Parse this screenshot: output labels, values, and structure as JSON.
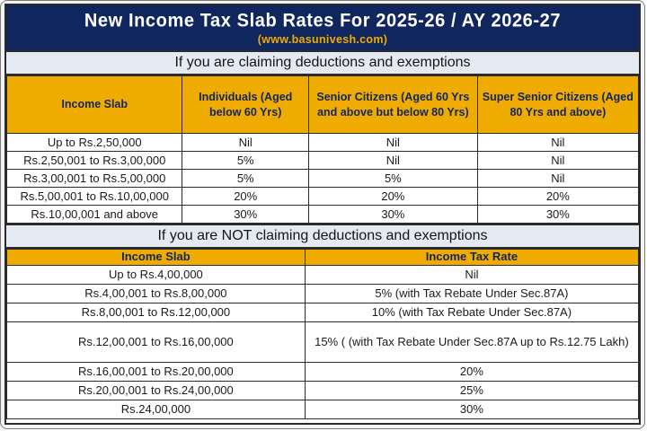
{
  "header": {
    "title": "New Income Tax Slab Rates For 2025-26 / AY 2026-27",
    "subtitle": "(www.basunivesh.com)"
  },
  "colors": {
    "navy": "#10265e",
    "gold": "#f0ab00",
    "band": "#e4e9f2",
    "line": "#2b2b2b",
    "text": "#1a1a1a"
  },
  "section_with_deductions": {
    "band_label": "If you are claiming deductions and exemptions",
    "columns": [
      "Income Slab",
      "Individuals (Aged below 60 Yrs)",
      "Senior Citizens (Aged 60 Yrs and above but below 80 Yrs)",
      "Super Senior Citizens (Aged 80 Yrs and above)"
    ],
    "rows": [
      [
        "Up to Rs.2,50,000",
        "Nil",
        "Nil",
        "Nil"
      ],
      [
        "Rs.2,50,001 to Rs.3,00,000",
        "5%",
        "Nil",
        "Nil"
      ],
      [
        "Rs.3,00,001 to Rs.5,00,000",
        "5%",
        "5%",
        "Nil"
      ],
      [
        "Rs.5,00,001 to Rs.10,00,000",
        "20%",
        "20%",
        "20%"
      ],
      [
        "Rs.10,00,001 and above",
        "30%",
        "30%",
        "30%"
      ]
    ]
  },
  "section_without_deductions": {
    "band_label": "If you are NOT claiming deductions and exemptions",
    "columns": [
      "Income Slab",
      "Income Tax Rate"
    ],
    "rows": [
      [
        "Up to Rs.4,00,000",
        "Nil"
      ],
      [
        "Rs.4,00,001 to Rs.8,00,000",
        "5% (with Tax Rebate Under Sec.87A)"
      ],
      [
        "Rs.8,00,001 to Rs.12,00,000",
        "10% (with Tax Rebate Under Sec.87A)"
      ],
      [
        "Rs.12,00,001 to Rs.16,00,000",
        "15% ( (with Tax Rebate Under Sec.87A up to Rs.12.75 Lakh)"
      ],
      [
        "Rs.16,00,001 to Rs.20,00,000",
        "20%"
      ],
      [
        "Rs.20,00,001 to Rs.24,00,000",
        "25%"
      ],
      [
        "Rs.24,00,000",
        "30%"
      ]
    ]
  }
}
